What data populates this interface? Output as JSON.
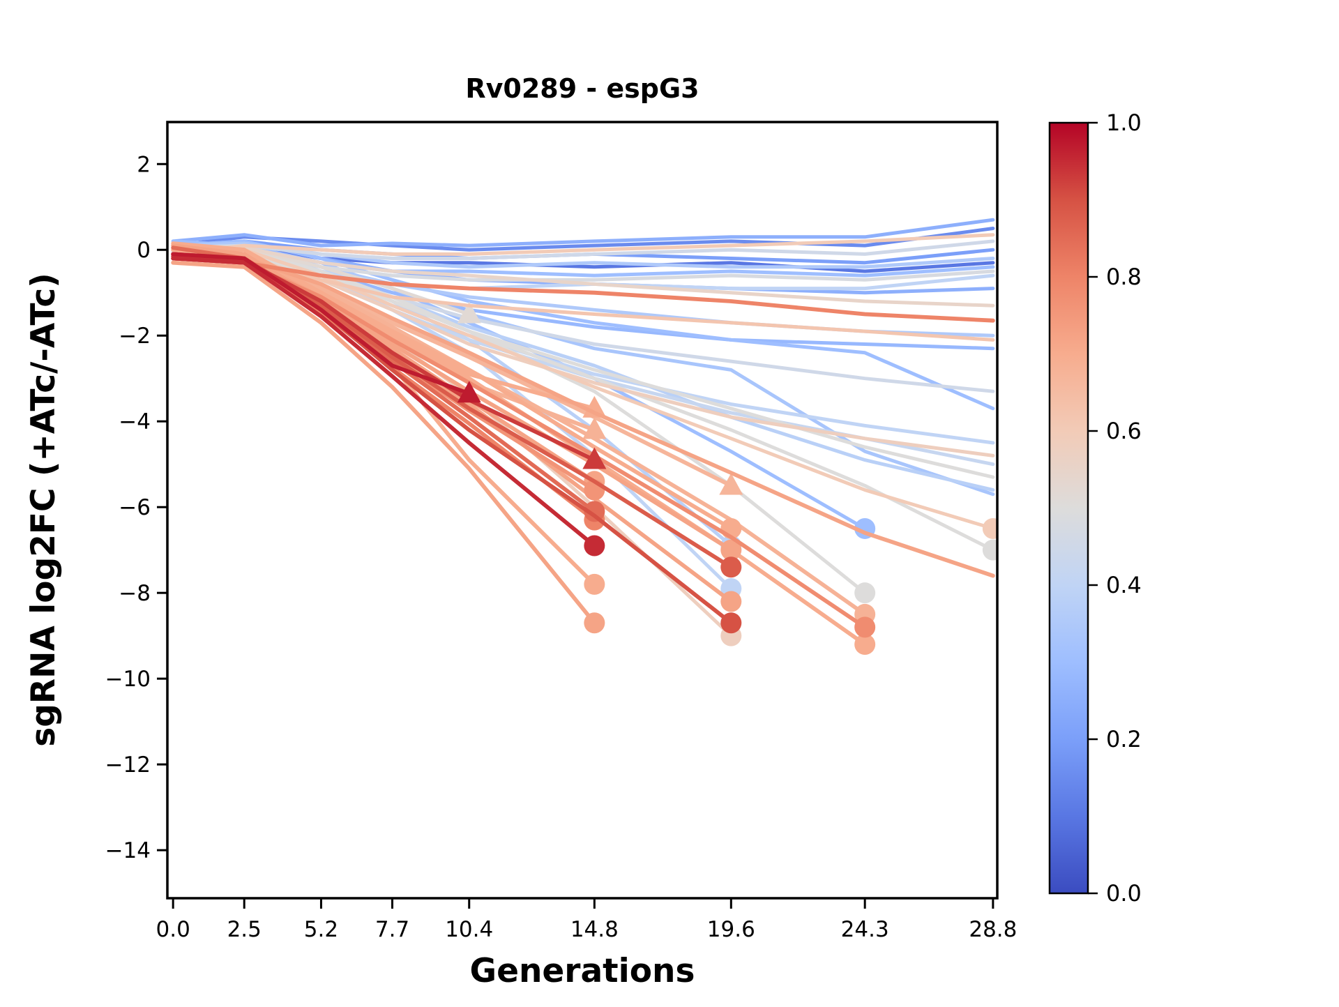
{
  "figure": {
    "background": "#ffffff",
    "spine_color": "#000000"
  },
  "chart_data": {
    "type": "line",
    "title": "Rv0289 - espG3",
    "xlabel": "Generations",
    "ylabel": "sgRNA log2FC (+ATc/-ATc)",
    "grid": false,
    "legend": "none",
    "xlim": [
      -0.2,
      28.95
    ],
    "ylim": [
      -15.12,
      2.98
    ],
    "x_ticks": [
      0.0,
      2.5,
      5.2,
      7.7,
      10.4,
      14.8,
      19.6,
      24.3,
      28.8
    ],
    "x_tick_labels": [
      "0.0",
      "2.5",
      "5.2",
      "7.7",
      "10.4",
      "14.8",
      "19.6",
      "24.3",
      "28.8"
    ],
    "y_ticks": [
      2,
      0,
      -2,
      -4,
      -6,
      -8,
      -10,
      -12,
      -14
    ],
    "timepoints": [
      0.0,
      2.5,
      5.2,
      7.7,
      10.4,
      14.8,
      19.6,
      24.3,
      28.8
    ],
    "colorbar": {
      "ticks": [
        "1.0",
        "0.8",
        "0.6",
        "0.4",
        "0.2",
        "0.0"
      ],
      "cmap_name": "coolwarm",
      "cmap_stops": [
        [
          0.0,
          "#3b4cc0"
        ],
        [
          0.1,
          "#5977e3"
        ],
        [
          0.2,
          "#7b9ff9"
        ],
        [
          0.3,
          "#9ebeff"
        ],
        [
          0.4,
          "#c0d4f5"
        ],
        [
          0.5,
          "#dddcdb"
        ],
        [
          0.6,
          "#f2cbb7"
        ],
        [
          0.7,
          "#f7ac8e"
        ],
        [
          0.8,
          "#ee8468"
        ],
        [
          0.9,
          "#d65244"
        ],
        [
          1.0,
          "#b40426"
        ]
      ]
    },
    "series": [
      {
        "c": 0.97,
        "marker": "triangle",
        "y": [
          -0.1,
          -0.2,
          -1.4,
          -2.7,
          -3.35
        ]
      },
      {
        "c": 0.7,
        "marker": "triangle",
        "y": [
          -0.1,
          -0.2,
          -1.0,
          -2.0,
          -2.9,
          -3.7
        ]
      },
      {
        "c": 0.68,
        "marker": "triangle",
        "y": [
          0.0,
          -0.15,
          -1.1,
          -2.1,
          -3.1,
          -4.2
        ]
      },
      {
        "c": 0.93,
        "marker": "triangle",
        "y": [
          -0.15,
          -0.25,
          -1.2,
          -2.4,
          -3.5,
          -4.9
        ]
      },
      {
        "c": 0.72,
        "marker": "circle",
        "y": [
          0.1,
          -0.1,
          -1.2,
          -2.3,
          -3.5,
          -5.4
        ]
      },
      {
        "c": 0.76,
        "marker": "circle",
        "y": [
          -0.2,
          -0.3,
          -1.35,
          -2.55,
          -3.75,
          -5.6
        ]
      },
      {
        "c": 0.85,
        "marker": "circle",
        "y": [
          0.05,
          -0.2,
          -1.3,
          -2.6,
          -3.9,
          -6.1
        ]
      },
      {
        "c": 0.8,
        "marker": "circle",
        "y": [
          -0.1,
          -0.25,
          -1.45,
          -2.75,
          -4.05,
          -6.3
        ]
      },
      {
        "c": 0.95,
        "marker": "circle",
        "y": [
          -0.2,
          -0.3,
          -1.55,
          -2.95,
          -4.5,
          -6.9
        ]
      },
      {
        "c": 0.7,
        "marker": "circle",
        "y": [
          0.15,
          0.0,
          -1.2,
          -2.7,
          -4.9,
          -7.8
        ]
      },
      {
        "c": 0.72,
        "marker": "circle",
        "y": [
          -0.3,
          -0.4,
          -1.7,
          -3.2,
          -5.1,
          -8.7
        ]
      },
      {
        "c": 0.52,
        "marker": "triangle",
        "y": [
          0.1,
          0.05,
          -0.4,
          -0.9,
          -1.5
        ]
      },
      {
        "c": 0.67,
        "marker": "triangle",
        "y": [
          0.0,
          -0.1,
          -0.9,
          -1.7,
          -2.5,
          -3.9,
          -5.5
        ]
      },
      {
        "c": 0.7,
        "marker": "circle",
        "y": [
          0.1,
          0.0,
          -1.0,
          -1.9,
          -2.8,
          -4.6,
          -6.5
        ]
      },
      {
        "c": 0.38,
        "marker": "circle",
        "y": [
          0.1,
          0.05,
          -0.5,
          -1.2,
          -2.1,
          -4.2,
          -6.9
        ]
      },
      {
        "c": 0.72,
        "marker": "circle",
        "y": [
          -0.1,
          -0.2,
          -1.1,
          -2.2,
          -3.3,
          -5.0,
          -7.0
        ]
      },
      {
        "c": 0.88,
        "marker": "circle",
        "y": [
          -0.15,
          -0.25,
          -1.3,
          -2.5,
          -3.7,
          -5.4,
          -7.4
        ]
      },
      {
        "c": 0.4,
        "marker": "circle",
        "y": [
          0.05,
          0.0,
          -0.6,
          -1.4,
          -2.4,
          -4.8,
          -7.9
        ]
      },
      {
        "c": 0.72,
        "marker": "circle",
        "y": [
          -0.2,
          -0.3,
          -1.2,
          -2.4,
          -3.6,
          -5.8,
          -8.2
        ]
      },
      {
        "c": 0.9,
        "marker": "circle",
        "y": [
          -0.1,
          -0.2,
          -1.4,
          -2.8,
          -4.2,
          -6.2,
          -8.7
        ]
      },
      {
        "c": 0.58,
        "marker": "circle",
        "y": [
          0.0,
          -0.1,
          -1.0,
          -2.1,
          -3.4,
          -6.0,
          -9.0
        ]
      },
      {
        "c": 0.3,
        "marker": "circle",
        "y": [
          0.2,
          0.1,
          -0.3,
          -0.9,
          -1.7,
          -3.0,
          -4.7,
          -6.5
        ]
      },
      {
        "c": 0.5,
        "marker": "circle",
        "y": [
          0.1,
          0.0,
          -0.5,
          -1.1,
          -1.9,
          -3.3,
          -5.5,
          -8.0
        ]
      },
      {
        "c": 0.68,
        "marker": "circle",
        "y": [
          -0.1,
          -0.2,
          -0.9,
          -1.8,
          -2.8,
          -4.4,
          -6.3,
          -8.5
        ]
      },
      {
        "c": 0.78,
        "marker": "circle",
        "y": [
          -0.2,
          -0.3,
          -1.1,
          -2.1,
          -3.1,
          -4.8,
          -6.7,
          -8.8
        ]
      },
      {
        "c": 0.7,
        "marker": "circle",
        "y": [
          0.0,
          -0.15,
          -1.0,
          -2.0,
          -3.0,
          -4.9,
          -7.0,
          -9.2
        ]
      },
      {
        "c": 0.6,
        "marker": "circle",
        "y": [
          0.1,
          0.0,
          -0.6,
          -1.3,
          -2.0,
          -3.2,
          -4.4,
          -5.6,
          -6.5
        ]
      },
      {
        "c": 0.5,
        "marker": "circle",
        "y": [
          0.0,
          -0.1,
          -0.5,
          -1.2,
          -1.9,
          -3.0,
          -4.2,
          -5.5,
          -7.0
        ]
      },
      {
        "c": 0.72,
        "marker": null,
        "y": [
          -0.1,
          -0.2,
          -0.8,
          -1.6,
          -2.4,
          -3.8,
          -5.2,
          -6.6,
          -7.6
        ]
      },
      {
        "c": 0.25,
        "marker": null,
        "y": [
          0.2,
          0.35,
          0.1,
          0.15,
          0.1,
          0.2,
          0.3,
          0.3,
          0.7
        ]
      },
      {
        "c": 0.15,
        "marker": null,
        "y": [
          0.1,
          0.3,
          0.2,
          0.1,
          0.0,
          0.1,
          0.2,
          0.1,
          0.5
        ]
      },
      {
        "c": 0.6,
        "marker": null,
        "y": [
          -0.1,
          0.1,
          0.0,
          -0.1,
          -0.1,
          0.0,
          0.1,
          0.2,
          0.35
        ]
      },
      {
        "c": 0.45,
        "marker": null,
        "y": [
          0.05,
          0.1,
          -0.1,
          -0.2,
          -0.2,
          -0.1,
          0.0,
          -0.1,
          0.2
        ]
      },
      {
        "c": 0.2,
        "marker": null,
        "y": [
          0.0,
          0.2,
          0.0,
          -0.1,
          -0.2,
          -0.1,
          -0.2,
          -0.3,
          0.0
        ]
      },
      {
        "c": 0.35,
        "marker": null,
        "y": [
          0.1,
          0.15,
          -0.1,
          -0.3,
          -0.4,
          -0.3,
          -0.4,
          -0.4,
          -0.2
        ]
      },
      {
        "c": 0.1,
        "marker": null,
        "y": [
          -0.05,
          0.1,
          -0.2,
          -0.3,
          -0.3,
          -0.4,
          -0.3,
          -0.5,
          -0.3
        ]
      },
      {
        "c": 0.3,
        "marker": null,
        "y": [
          0.0,
          0.05,
          -0.3,
          -0.5,
          -0.5,
          -0.6,
          -0.5,
          -0.6,
          -0.4
        ]
      },
      {
        "c": 0.48,
        "marker": null,
        "y": [
          -0.1,
          0.0,
          -0.4,
          -0.6,
          -0.7,
          -0.7,
          -0.6,
          -0.7,
          -0.5
        ]
      },
      {
        "c": 0.4,
        "marker": null,
        "y": [
          0.05,
          0.1,
          -0.5,
          -0.8,
          -0.9,
          -0.8,
          -0.9,
          -0.9,
          -0.6
        ]
      },
      {
        "c": 0.25,
        "marker": null,
        "y": [
          0.1,
          0.2,
          -0.2,
          -0.5,
          -0.7,
          -0.8,
          -0.9,
          -1.0,
          -0.9
        ]
      },
      {
        "c": 0.8,
        "marker": null,
        "y": [
          -0.2,
          -0.3,
          -0.6,
          -0.8,
          -0.9,
          -1.0,
          -1.2,
          -1.5,
          -1.65
        ]
      },
      {
        "c": 0.55,
        "marker": null,
        "y": [
          0.0,
          0.05,
          -0.3,
          -0.5,
          -0.6,
          -0.8,
          -1.0,
          -1.2,
          -1.3
        ]
      },
      {
        "c": 0.62,
        "marker": null,
        "y": [
          -0.1,
          -0.2,
          -0.7,
          -1.1,
          -1.3,
          -1.5,
          -1.7,
          -1.9,
          -2.1
        ]
      },
      {
        "c": 0.35,
        "marker": null,
        "y": [
          0.1,
          0.1,
          -0.4,
          -0.8,
          -1.1,
          -1.4,
          -1.7,
          -1.9,
          -2.0
        ]
      },
      {
        "c": 0.28,
        "marker": null,
        "y": [
          0.1,
          0.1,
          -0.5,
          -1.0,
          -1.4,
          -1.8,
          -2.1,
          -2.2,
          -2.3
        ]
      },
      {
        "c": 0.45,
        "marker": null,
        "y": [
          0.0,
          -0.1,
          -0.6,
          -1.1,
          -1.6,
          -2.2,
          -2.6,
          -3.0,
          -3.3
        ]
      },
      {
        "c": 0.3,
        "marker": null,
        "y": [
          0.1,
          0.2,
          -0.2,
          -0.7,
          -1.2,
          -1.7,
          -2.1,
          -2.4,
          -3.7
        ]
      },
      {
        "c": 0.33,
        "marker": null,
        "y": [
          0.05,
          0.1,
          -0.4,
          -0.9,
          -1.5,
          -2.3,
          -2.8,
          -4.7,
          -5.7
        ]
      },
      {
        "c": 0.4,
        "marker": null,
        "y": [
          0.0,
          0.0,
          -0.6,
          -1.3,
          -2.0,
          -2.9,
          -3.6,
          -4.1,
          -4.5
        ]
      },
      {
        "c": 0.42,
        "marker": null,
        "y": [
          0.1,
          0.0,
          -0.7,
          -1.4,
          -2.1,
          -3.0,
          -3.8,
          -4.4,
          -5.0
        ]
      },
      {
        "c": 0.5,
        "marker": null,
        "y": [
          -0.05,
          -0.1,
          -0.6,
          -1.2,
          -1.9,
          -2.8,
          -3.7,
          -4.6,
          -5.3
        ]
      },
      {
        "c": 0.38,
        "marker": null,
        "y": [
          0.0,
          0.05,
          -0.5,
          -1.1,
          -1.8,
          -2.7,
          -3.9,
          -4.9,
          -5.6
        ]
      },
      {
        "c": 0.58,
        "marker": null,
        "y": [
          -0.1,
          -0.15,
          -0.7,
          -1.4,
          -2.2,
          -3.1,
          -3.9,
          -4.4,
          -4.8
        ]
      }
    ]
  }
}
